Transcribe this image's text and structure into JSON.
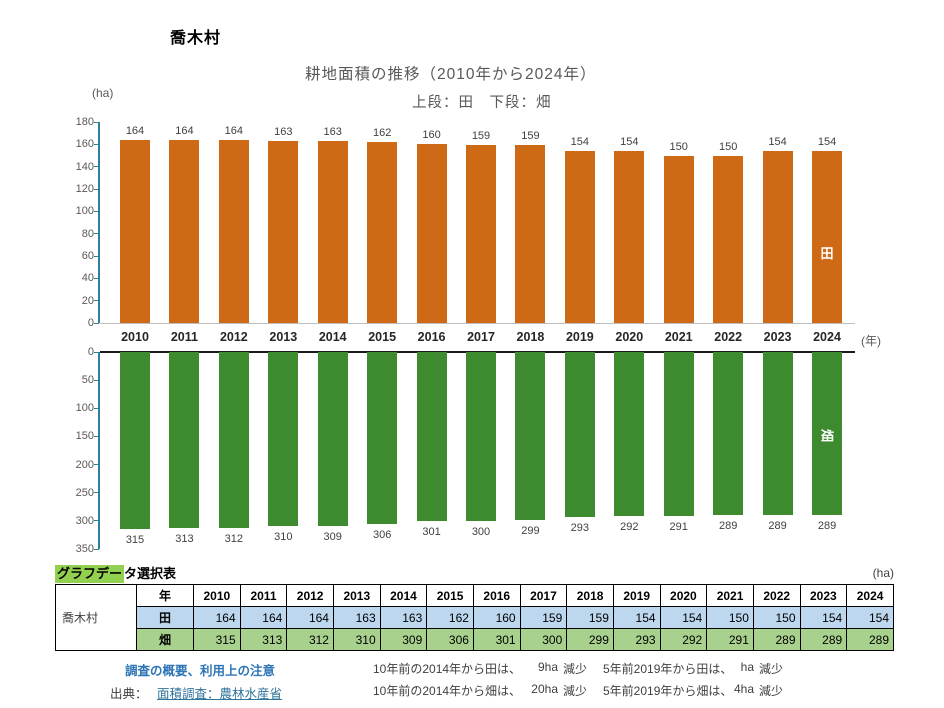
{
  "page": {
    "village_name": "喬木村"
  },
  "chart_data": {
    "type": "bar",
    "title": "耕地面積の推移（2010年から2024年）",
    "subtitle": "上段：田　下段：畑",
    "unit_label": "(ha)",
    "x_unit_label": "(年)",
    "grid": false,
    "legend": "series names drawn as white labels inside last bar",
    "categories": [
      "2010",
      "2011",
      "2012",
      "2013",
      "2014",
      "2015",
      "2016",
      "2017",
      "2018",
      "2019",
      "2020",
      "2021",
      "2022",
      "2023",
      "2024"
    ],
    "series": [
      {
        "name": "田",
        "color": "#ce6a15",
        "orientation": "up",
        "ylim": [
          0,
          180
        ],
        "yticks": [
          0,
          20,
          40,
          60,
          80,
          100,
          120,
          140,
          160,
          180
        ],
        "values": [
          164,
          164,
          164,
          163,
          163,
          162,
          160,
          159,
          159,
          154,
          154,
          150,
          150,
          154,
          154
        ]
      },
      {
        "name": "畑",
        "color": "#3e8a2e",
        "orientation": "down",
        "ylim": [
          0,
          350
        ],
        "yticks": [
          0,
          50,
          100,
          150,
          200,
          250,
          300,
          350
        ],
        "values": [
          315,
          313,
          312,
          310,
          309,
          306,
          301,
          300,
          299,
          293,
          292,
          291,
          289,
          289,
          289
        ]
      }
    ]
  },
  "table": {
    "title_highlighted": "グラフデー",
    "title_rest": "タ選択表",
    "unit_label": "(ha)",
    "corner_label": "喬木村",
    "year_header": "年",
    "row_labels": [
      "田",
      "畑"
    ]
  },
  "footer": {
    "survey_link": "調査の概要、利用上の注意",
    "source_label": "出典：",
    "source_link": "面積調査：農林水産省",
    "notes": [
      {
        "left_text": "10年前の2014年から田は、",
        "left_value": "9ha",
        "left_word": "減少",
        "right_text": "5年前2019年から田は、",
        "right_value": "ha",
        "right_word": "減少"
      },
      {
        "left_text": "10年前の2014年から畑は、",
        "left_value": "20ha",
        "left_word": "減少",
        "right_text": "5年前2019年から畑は、",
        "right_value": "4ha",
        "right_word": "減少"
      }
    ]
  },
  "colors": {
    "bar_ta": "#ce6a15",
    "bar_hata": "#3e8a2e",
    "axis": "#2e7f9b",
    "tick_text": "#595959",
    "table_row_ta_bg": "#bdd7ee",
    "table_row_hata_bg": "#a9d18e",
    "table_title_highlight": "#92d050",
    "survey_link_blue": "#2e75b6",
    "source_link_teal": "#31749b"
  }
}
